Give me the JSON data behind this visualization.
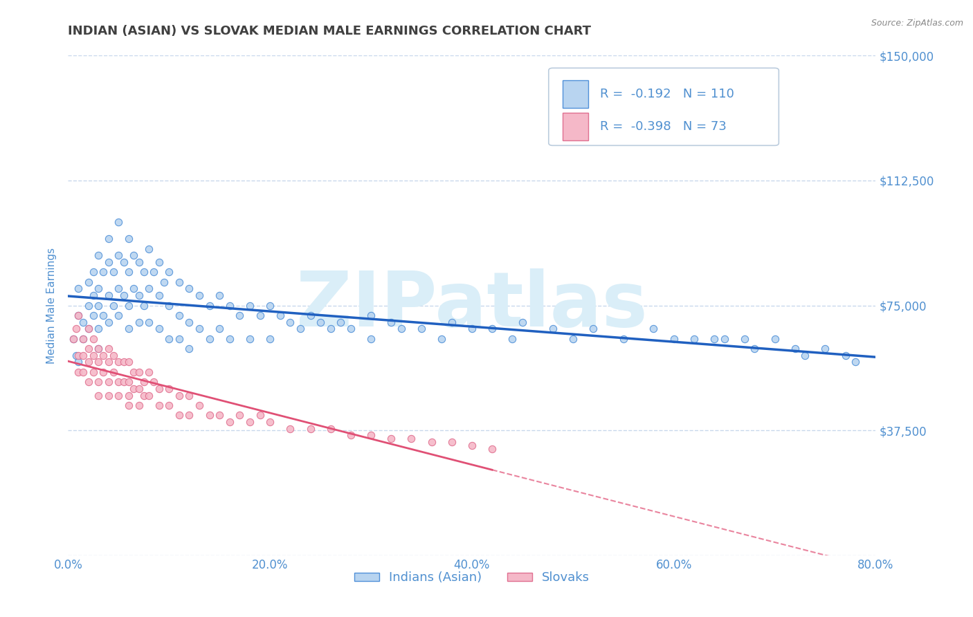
{
  "title": "INDIAN (ASIAN) VS SLOVAK MEDIAN MALE EARNINGS CORRELATION CHART",
  "source_text": "Source: ZipAtlas.com",
  "ylabel": "Median Male Earnings",
  "xlim": [
    0.0,
    0.8
  ],
  "ylim": [
    0,
    150000
  ],
  "xtick_labels": [
    "0.0%",
    "20.0%",
    "40.0%",
    "60.0%",
    "80.0%"
  ],
  "xtick_values": [
    0.0,
    0.2,
    0.4,
    0.6,
    0.8
  ],
  "ytick_values": [
    0,
    37500,
    75000,
    112500,
    150000
  ],
  "ytick_labels": [
    "",
    "$37,500",
    "$75,000",
    "$112,500",
    "$150,000"
  ],
  "indian_fill_color": "#b8d4f0",
  "slovak_fill_color": "#f5b8c8",
  "indian_edge_color": "#5090d8",
  "slovak_edge_color": "#e07090",
  "indian_line_color": "#2060c0",
  "slovak_line_color": "#e05075",
  "title_color": "#404040",
  "axis_label_color": "#5090d0",
  "watermark_color": "#daeef8",
  "background_color": "#ffffff",
  "grid_color": "#c8d8ec",
  "indian_R": -0.192,
  "indian_N": 110,
  "slovak_R": -0.398,
  "slovak_N": 73,
  "legend_label_indian": "Indians (Asian)",
  "legend_label_slovak": "Slovaks",
  "indian_scatter_x": [
    0.005,
    0.008,
    0.01,
    0.01,
    0.01,
    0.015,
    0.015,
    0.02,
    0.02,
    0.02,
    0.025,
    0.025,
    0.025,
    0.03,
    0.03,
    0.03,
    0.03,
    0.03,
    0.035,
    0.035,
    0.04,
    0.04,
    0.04,
    0.04,
    0.045,
    0.045,
    0.05,
    0.05,
    0.05,
    0.05,
    0.055,
    0.055,
    0.06,
    0.06,
    0.06,
    0.06,
    0.065,
    0.065,
    0.07,
    0.07,
    0.07,
    0.075,
    0.075,
    0.08,
    0.08,
    0.08,
    0.085,
    0.09,
    0.09,
    0.09,
    0.095,
    0.1,
    0.1,
    0.1,
    0.11,
    0.11,
    0.11,
    0.12,
    0.12,
    0.12,
    0.13,
    0.13,
    0.14,
    0.14,
    0.15,
    0.15,
    0.16,
    0.16,
    0.17,
    0.18,
    0.18,
    0.19,
    0.2,
    0.2,
    0.21,
    0.22,
    0.23,
    0.24,
    0.25,
    0.26,
    0.27,
    0.28,
    0.3,
    0.3,
    0.32,
    0.33,
    0.35,
    0.37,
    0.38,
    0.4,
    0.42,
    0.44,
    0.45,
    0.48,
    0.5,
    0.52,
    0.55,
    0.58,
    0.6,
    0.62,
    0.64,
    0.65,
    0.67,
    0.68,
    0.7,
    0.72,
    0.73,
    0.75,
    0.77,
    0.78
  ],
  "indian_scatter_y": [
    65000,
    60000,
    72000,
    58000,
    80000,
    70000,
    65000,
    75000,
    82000,
    68000,
    78000,
    85000,
    72000,
    90000,
    80000,
    68000,
    75000,
    62000,
    85000,
    72000,
    95000,
    88000,
    78000,
    70000,
    85000,
    75000,
    100000,
    90000,
    80000,
    72000,
    88000,
    78000,
    95000,
    85000,
    75000,
    68000,
    90000,
    80000,
    88000,
    78000,
    70000,
    85000,
    75000,
    92000,
    80000,
    70000,
    85000,
    88000,
    78000,
    68000,
    82000,
    85000,
    75000,
    65000,
    82000,
    72000,
    65000,
    80000,
    70000,
    62000,
    78000,
    68000,
    75000,
    65000,
    78000,
    68000,
    75000,
    65000,
    72000,
    75000,
    65000,
    72000,
    75000,
    65000,
    72000,
    70000,
    68000,
    72000,
    70000,
    68000,
    70000,
    68000,
    72000,
    65000,
    70000,
    68000,
    68000,
    65000,
    70000,
    68000,
    68000,
    65000,
    70000,
    68000,
    65000,
    68000,
    65000,
    68000,
    65000,
    65000,
    65000,
    65000,
    65000,
    62000,
    65000,
    62000,
    60000,
    62000,
    60000,
    58000
  ],
  "slovak_scatter_x": [
    0.005,
    0.008,
    0.01,
    0.01,
    0.01,
    0.015,
    0.015,
    0.015,
    0.02,
    0.02,
    0.02,
    0.02,
    0.025,
    0.025,
    0.025,
    0.03,
    0.03,
    0.03,
    0.03,
    0.035,
    0.035,
    0.04,
    0.04,
    0.04,
    0.04,
    0.045,
    0.045,
    0.05,
    0.05,
    0.05,
    0.055,
    0.055,
    0.06,
    0.06,
    0.06,
    0.06,
    0.065,
    0.065,
    0.07,
    0.07,
    0.07,
    0.075,
    0.075,
    0.08,
    0.08,
    0.085,
    0.09,
    0.09,
    0.1,
    0.1,
    0.11,
    0.11,
    0.12,
    0.12,
    0.13,
    0.14,
    0.15,
    0.16,
    0.17,
    0.18,
    0.19,
    0.2,
    0.22,
    0.24,
    0.26,
    0.28,
    0.3,
    0.32,
    0.34,
    0.36,
    0.38,
    0.4,
    0.42
  ],
  "slovak_scatter_y": [
    65000,
    68000,
    72000,
    60000,
    55000,
    65000,
    60000,
    55000,
    68000,
    62000,
    58000,
    52000,
    65000,
    60000,
    55000,
    62000,
    58000,
    52000,
    48000,
    60000,
    55000,
    62000,
    58000,
    52000,
    48000,
    60000,
    55000,
    58000,
    52000,
    48000,
    58000,
    52000,
    58000,
    52000,
    48000,
    45000,
    55000,
    50000,
    55000,
    50000,
    45000,
    52000,
    48000,
    55000,
    48000,
    52000,
    50000,
    45000,
    50000,
    45000,
    48000,
    42000,
    48000,
    42000,
    45000,
    42000,
    42000,
    40000,
    42000,
    40000,
    42000,
    40000,
    38000,
    38000,
    38000,
    36000,
    36000,
    35000,
    35000,
    34000,
    34000,
    33000,
    32000
  ]
}
